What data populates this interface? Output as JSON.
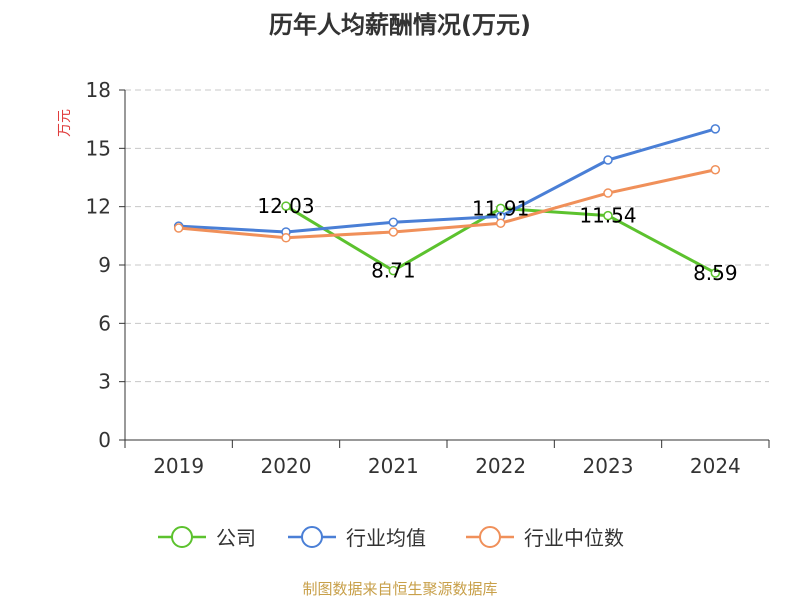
{
  "chart_data": {
    "type": "line",
    "title": "历年人均薪酬情况(万元)",
    "xlabel": "",
    "ylabel": "万元",
    "categories": [
      "2019",
      "2020",
      "2021",
      "2022",
      "2023",
      "2024"
    ],
    "ylim": [
      0,
      18
    ],
    "yticks": [
      "0",
      "3",
      "6",
      "9",
      "12",
      "15",
      "18"
    ],
    "grid": true,
    "legend_position": "bottom",
    "series": [
      {
        "name": "公司",
        "color": "#5cc22e",
        "values": [
          null,
          12.03,
          8.71,
          11.91,
          11.54,
          8.59
        ],
        "labels": [
          "",
          "12.03",
          "8.71",
          "11.91",
          "11.54",
          "8.59"
        ]
      },
      {
        "name": "行业均值",
        "color": "#4a7fd6",
        "values": [
          11.0,
          10.7,
          11.2,
          11.5,
          14.4,
          16.0
        ],
        "labels": []
      },
      {
        "name": "行业中位数",
        "color": "#f0905a",
        "values": [
          10.9,
          10.4,
          10.7,
          11.15,
          12.7,
          13.9
        ],
        "labels": []
      }
    ],
    "source": "制图数据来自恒生聚源数据库"
  }
}
